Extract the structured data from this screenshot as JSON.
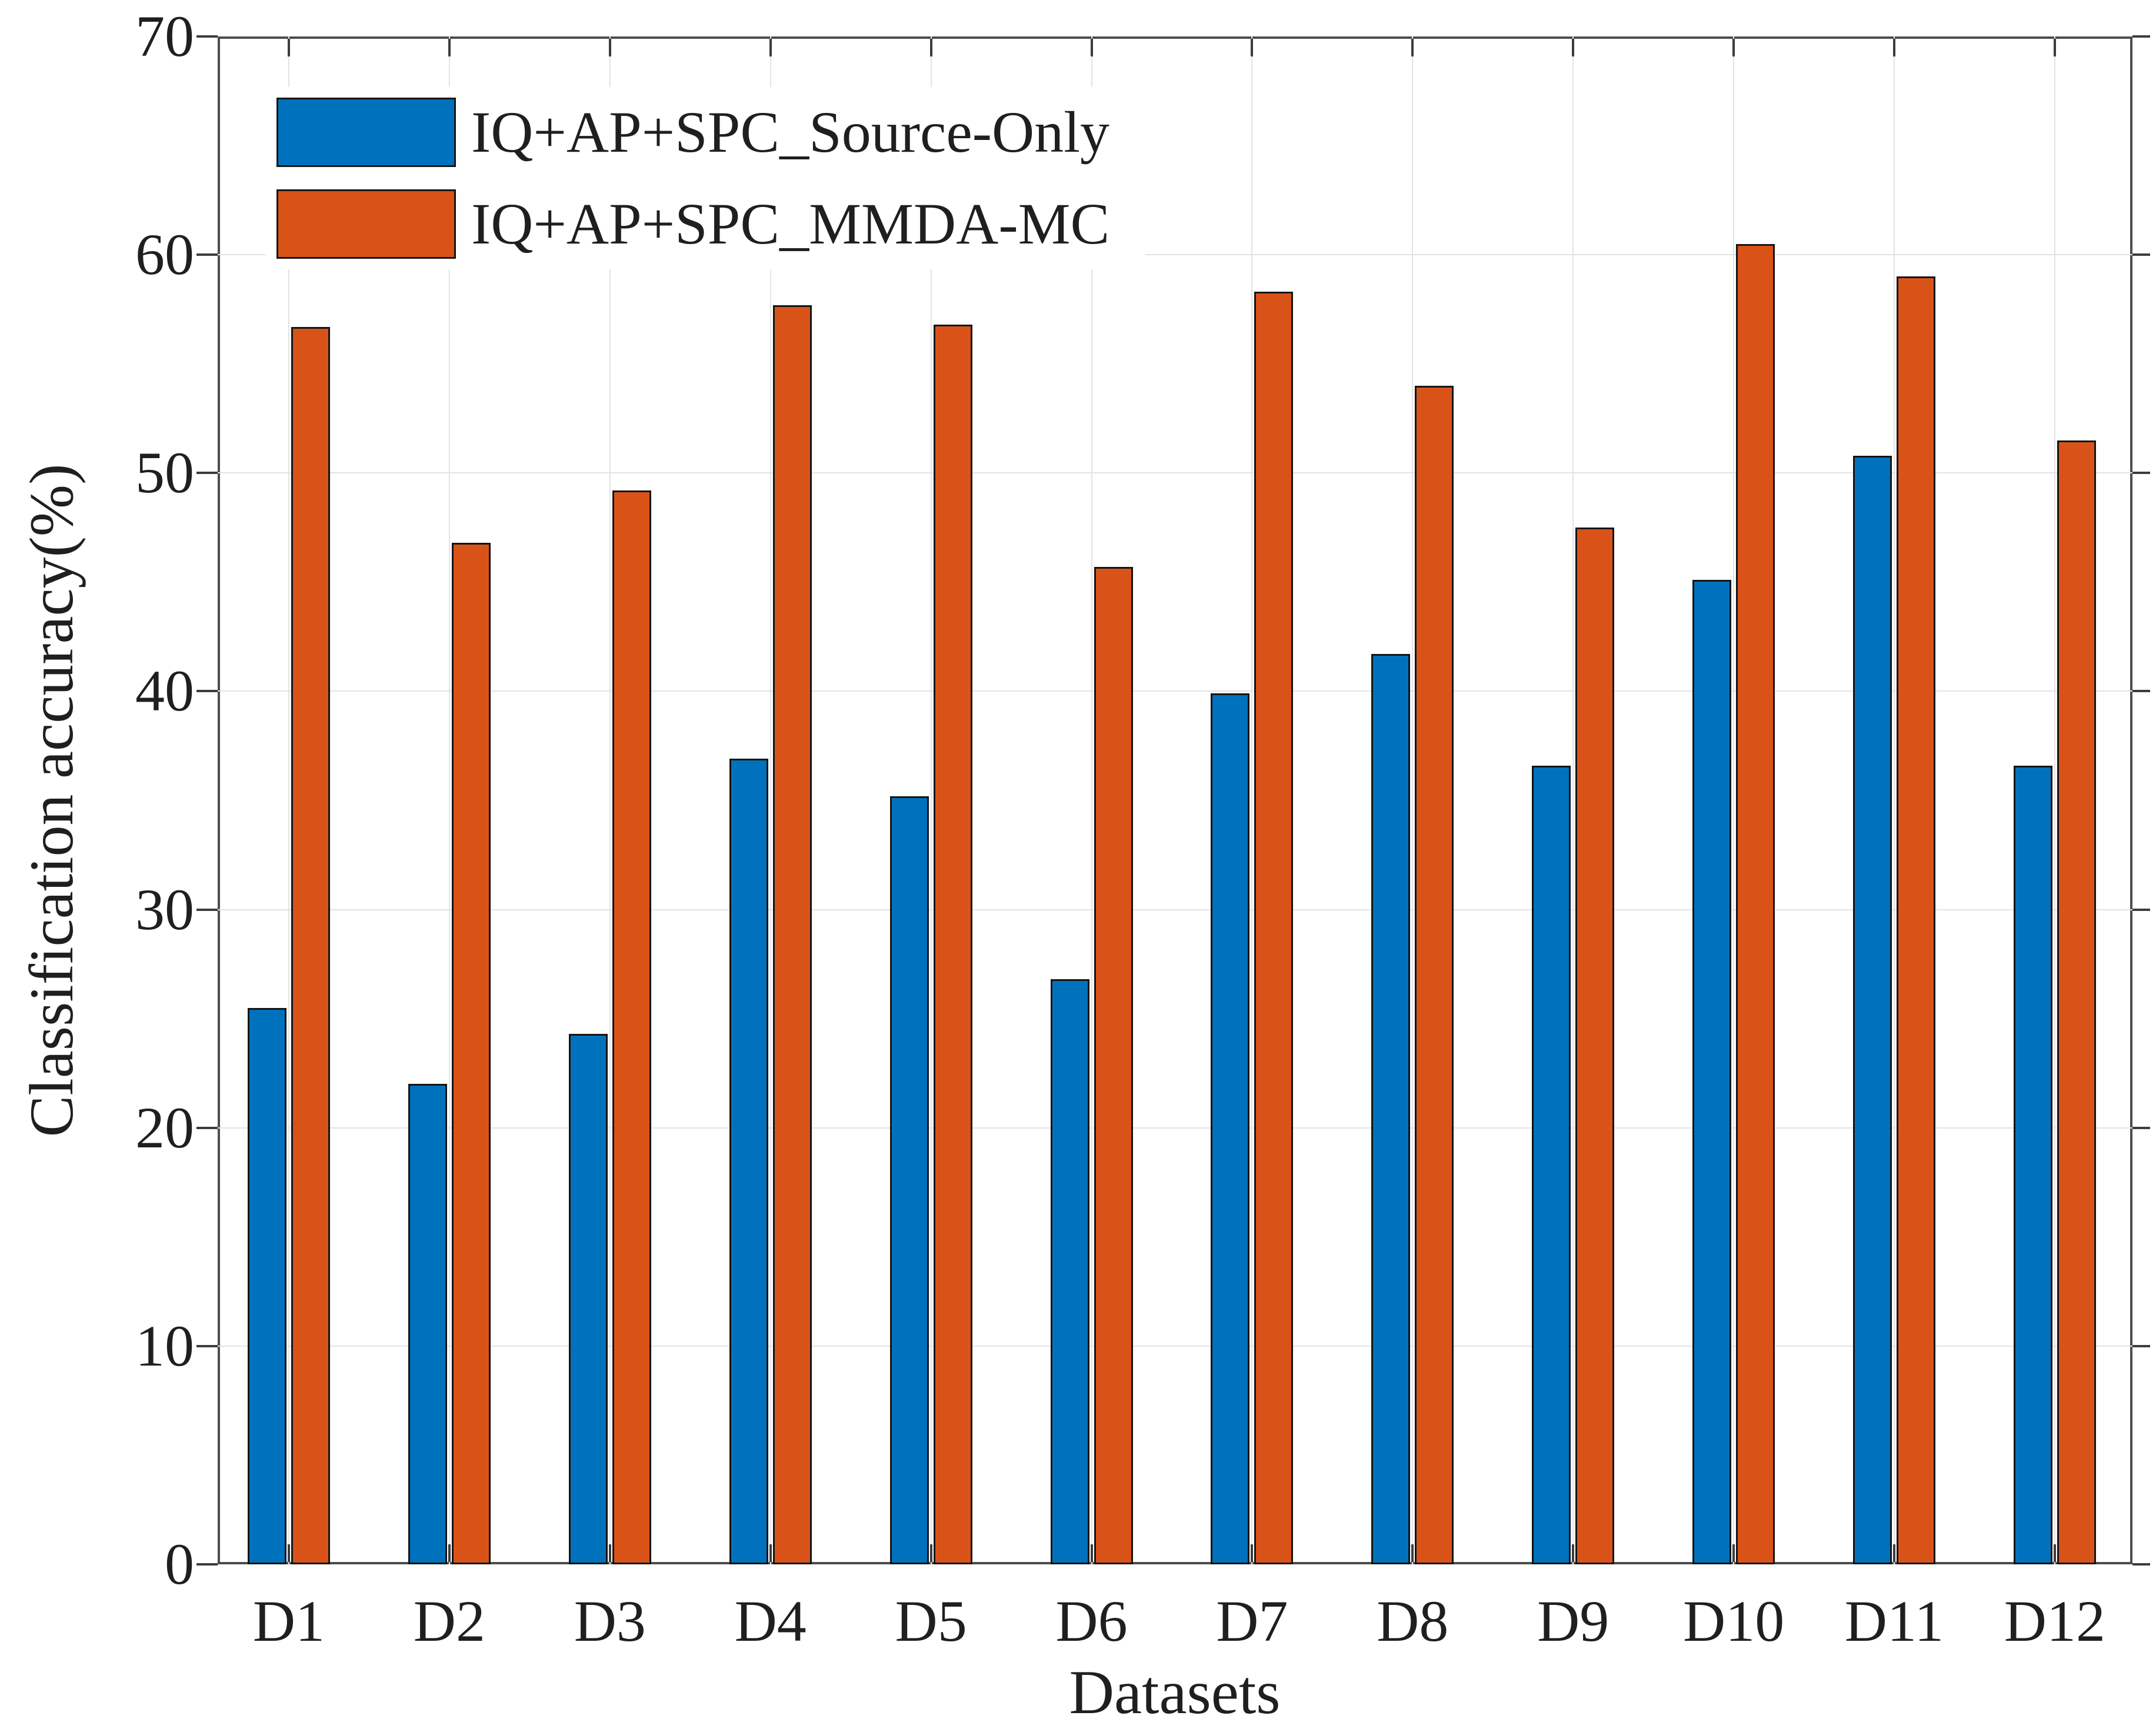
{
  "chart_data": {
    "type": "bar",
    "title": "",
    "xlabel": "Datasets",
    "ylabel": "Classification accuracy(%)",
    "categories": [
      "D1",
      "D2",
      "D3",
      "D4",
      "D5",
      "D6",
      "D7",
      "D8",
      "D9",
      "D10",
      "D11",
      "D12"
    ],
    "series": [
      {
        "name": "IQ+AP+SPC_Source-Only",
        "color": "#0072BD",
        "values": [
          25.5,
          22.0,
          24.3,
          36.9,
          35.2,
          26.8,
          39.9,
          41.7,
          36.6,
          45.1,
          50.8,
          36.6
        ]
      },
      {
        "name": "IQ+AP+SPC_MMDA-MC",
        "color": "#D95319",
        "values": [
          56.7,
          46.8,
          49.2,
          57.7,
          56.8,
          45.7,
          58.3,
          54.0,
          47.5,
          60.5,
          59.0,
          51.5
        ]
      }
    ],
    "ylim": [
      0,
      70
    ],
    "yticks": [
      0,
      10,
      20,
      30,
      40,
      50,
      60,
      70
    ],
    "grid": true,
    "legend_position": "top-left"
  }
}
